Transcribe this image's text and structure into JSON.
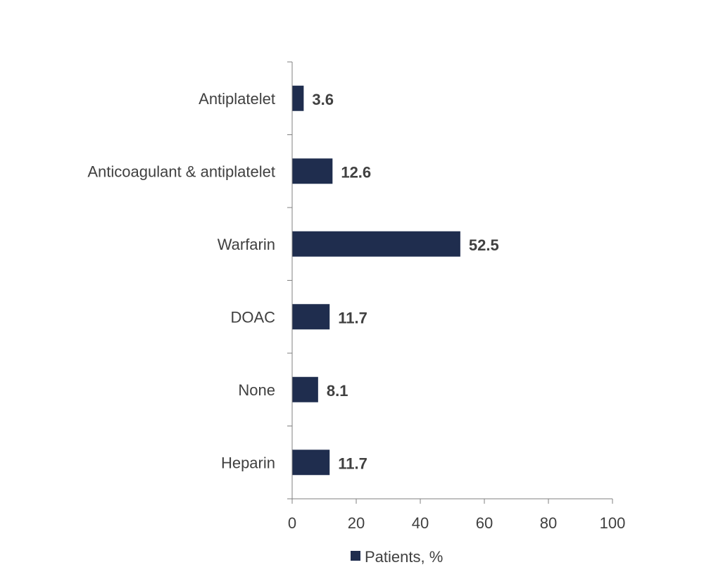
{
  "chart_data": {
    "type": "bar",
    "orientation": "horizontal",
    "title": "",
    "xlabel": "",
    "ylabel": "",
    "categories": [
      "Antiplatelet",
      "Anticoagulant & antiplatelet",
      "Warfarin",
      "DOAC",
      "None",
      "Heparin"
    ],
    "series": [
      {
        "name": "Patients, %",
        "color": "#1f2d4e",
        "values": [
          3.6,
          12.6,
          52.5,
          11.7,
          8.1,
          11.7
        ],
        "value_labels": [
          "3.6",
          "12.6",
          "52.5",
          "11.7",
          "8.1",
          "11.7"
        ]
      }
    ],
    "xlim": [
      0,
      100
    ],
    "xticks": [
      0,
      20,
      40,
      60,
      80,
      100
    ],
    "xtick_labels": [
      "0",
      "20",
      "40",
      "60",
      "80",
      "100"
    ],
    "grid": false,
    "legend": {
      "position": "bottom-center",
      "entries": [
        "Patients, %"
      ]
    }
  }
}
